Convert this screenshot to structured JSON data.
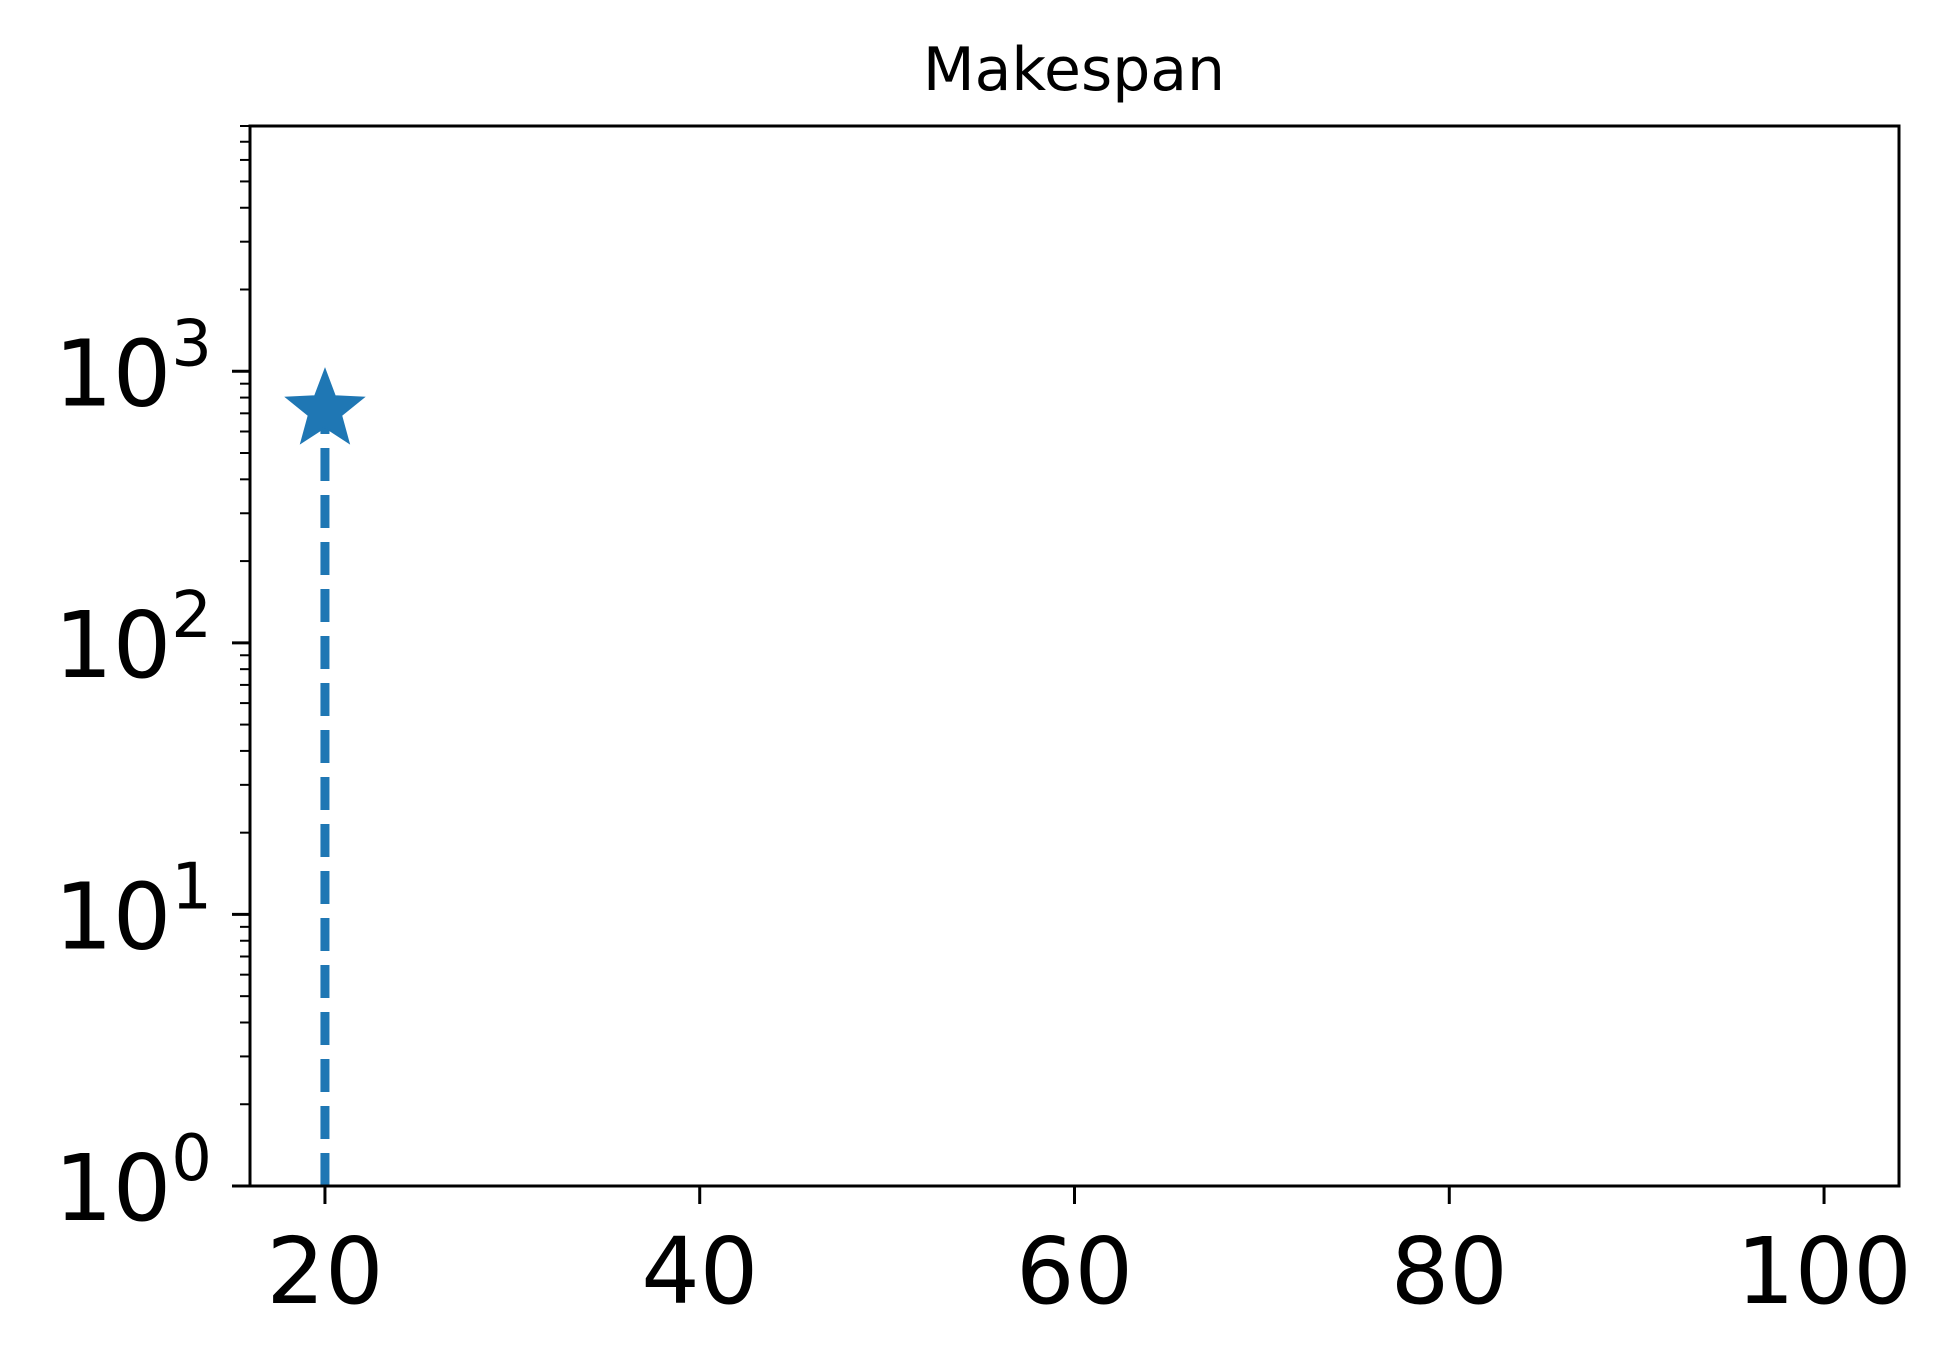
{
  "chart_data": {
    "type": "line",
    "title": "Makespan",
    "xlabel": "",
    "ylabel": "",
    "xlim": [
      16,
      104
    ],
    "ylim": [
      1,
      8000
    ],
    "yscale": "log",
    "grid": false,
    "x_ticks": [
      {
        "value": 20,
        "label": "20"
      },
      {
        "value": 40,
        "label": "40"
      },
      {
        "value": 60,
        "label": "60"
      },
      {
        "value": 80,
        "label": "80"
      },
      {
        "value": 100,
        "label": "100"
      }
    ],
    "y_ticks": [
      {
        "value": 1,
        "base": "10",
        "exp": "0"
      },
      {
        "value": 10,
        "base": "10",
        "exp": "1"
      },
      {
        "value": 100,
        "base": "10",
        "exp": "2"
      },
      {
        "value": 1000,
        "base": "10",
        "exp": "3"
      }
    ],
    "series": [
      {
        "color": "#1f77b4",
        "linestyle": "dashed",
        "marker": "star",
        "points": [
          {
            "x": 20,
            "y": 1,
            "marker": false
          },
          {
            "x": 20,
            "y": 720,
            "marker": true
          }
        ]
      }
    ]
  }
}
